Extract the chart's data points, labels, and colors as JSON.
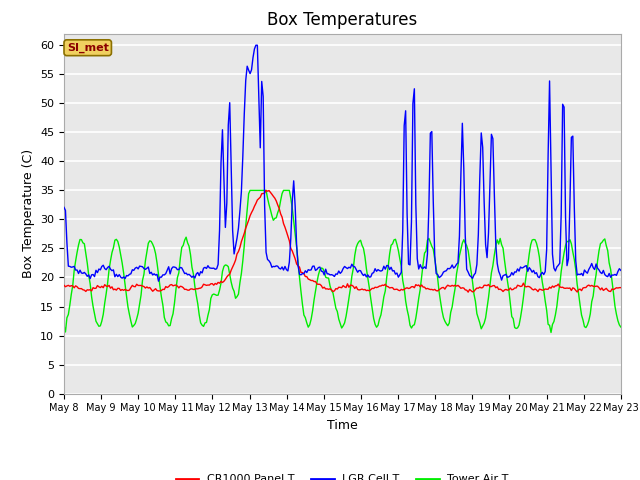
{
  "title": "Box Temperatures",
  "xlabel": "Time",
  "ylabel": "Box Temperature (C)",
  "ylim": [
    0,
    62
  ],
  "yticks": [
    0,
    5,
    10,
    15,
    20,
    25,
    30,
    35,
    40,
    45,
    50,
    55,
    60
  ],
  "plot_bg_color": "#e8e8e8",
  "fig_bg_color": "#ffffff",
  "grid_color": "#ffffff",
  "legend_label": "SI_met",
  "series_labels": [
    "CR1000 Panel T",
    "LGR Cell T",
    "Tower Air T"
  ],
  "series_colors": [
    "red",
    "blue",
    "#00ee00"
  ],
  "x_tick_labels": [
    "May 8",
    "May 9",
    "May 10",
    "May 11",
    "May 12",
    "May 13",
    "May 14",
    "May 15",
    "May 16",
    "May 17",
    "May 18",
    "May 19",
    "May 20",
    "May 21",
    "May 22",
    "May 23"
  ],
  "title_fontsize": 12,
  "label_fontsize": 9,
  "tick_fontsize": 8
}
